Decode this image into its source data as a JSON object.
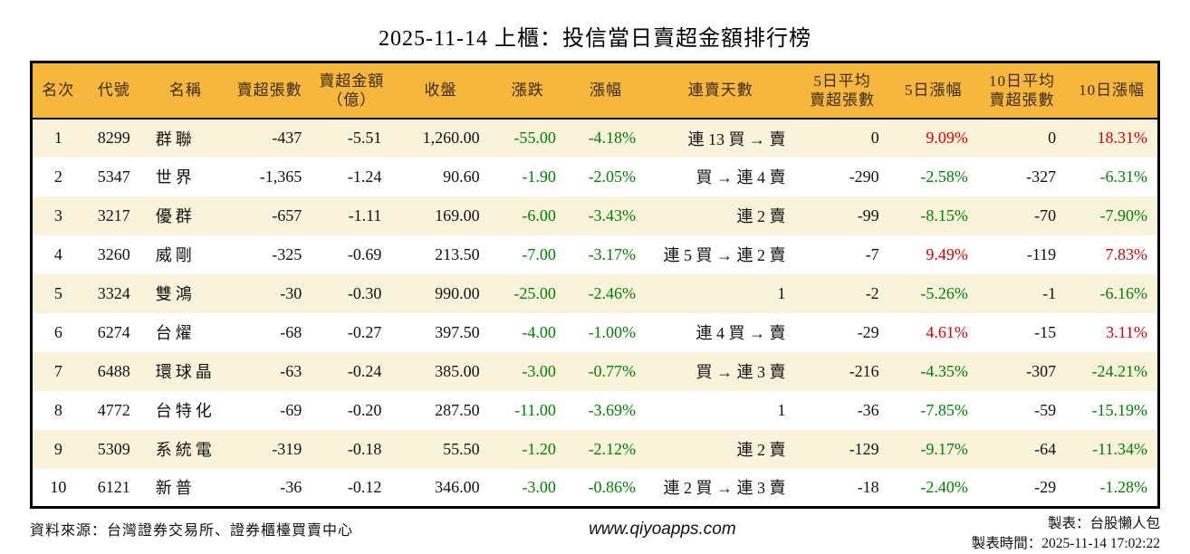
{
  "title": "2025-11-14 上櫃：投信當日賣超金額排行榜",
  "colors": {
    "header_bg": "#F6B73E",
    "row_alt": "#FAF3DC",
    "up": "#DE0000",
    "down": "#008000",
    "border": "#000000",
    "header_text": "#3A2A08"
  },
  "table": {
    "columns": [
      "名次",
      "代號",
      "名稱",
      "賣超張數",
      "賣超金額\n（億）",
      "收盤",
      "漲跌",
      "漲幅",
      "連賣天數",
      "5日平均\n賣超張數",
      "5日漲幅",
      "10日平均\n賣超張數",
      "10日漲幅"
    ],
    "rows": [
      {
        "rank": "1",
        "code": "8299",
        "name": "群聯",
        "net_sell_shares": "-437",
        "net_sell_amount": "-5.51",
        "close": "1,260.00",
        "change": "-55.00",
        "change_pct": "-4.18%",
        "streak": "連 13 買 → 賣",
        "avg5": "0",
        "pct5": "9.09%",
        "avg10": "0",
        "pct10": "18.31%"
      },
      {
        "rank": "2",
        "code": "5347",
        "name": "世界",
        "net_sell_shares": "-1,365",
        "net_sell_amount": "-1.24",
        "close": "90.60",
        "change": "-1.90",
        "change_pct": "-2.05%",
        "streak": "買 → 連 4 賣",
        "avg5": "-290",
        "pct5": "-2.58%",
        "avg10": "-327",
        "pct10": "-6.31%"
      },
      {
        "rank": "3",
        "code": "3217",
        "name": "優群",
        "net_sell_shares": "-657",
        "net_sell_amount": "-1.11",
        "close": "169.00",
        "change": "-6.00",
        "change_pct": "-3.43%",
        "streak": "連 2 賣",
        "avg5": "-99",
        "pct5": "-8.15%",
        "avg10": "-70",
        "pct10": "-7.90%"
      },
      {
        "rank": "4",
        "code": "3260",
        "name": "威剛",
        "net_sell_shares": "-325",
        "net_sell_amount": "-0.69",
        "close": "213.50",
        "change": "-7.00",
        "change_pct": "-3.17%",
        "streak": "連 5 買 → 連 2 賣",
        "avg5": "-7",
        "pct5": "9.49%",
        "avg10": "-119",
        "pct10": "7.83%"
      },
      {
        "rank": "5",
        "code": "3324",
        "name": "雙鴻",
        "net_sell_shares": "-30",
        "net_sell_amount": "-0.30",
        "close": "990.00",
        "change": "-25.00",
        "change_pct": "-2.46%",
        "streak": "1",
        "avg5": "-2",
        "pct5": "-5.26%",
        "avg10": "-1",
        "pct10": "-6.16%"
      },
      {
        "rank": "6",
        "code": "6274",
        "name": "台燿",
        "net_sell_shares": "-68",
        "net_sell_amount": "-0.27",
        "close": "397.50",
        "change": "-4.00",
        "change_pct": "-1.00%",
        "streak": "連 4 買 → 賣",
        "avg5": "-29",
        "pct5": "4.61%",
        "avg10": "-15",
        "pct10": "3.11%"
      },
      {
        "rank": "7",
        "code": "6488",
        "name": "環球晶",
        "net_sell_shares": "-63",
        "net_sell_amount": "-0.24",
        "close": "385.00",
        "change": "-3.00",
        "change_pct": "-0.77%",
        "streak": "買 → 連 3 賣",
        "avg5": "-216",
        "pct5": "-4.35%",
        "avg10": "-307",
        "pct10": "-24.21%"
      },
      {
        "rank": "8",
        "code": "4772",
        "name": "台特化",
        "net_sell_shares": "-69",
        "net_sell_amount": "-0.20",
        "close": "287.50",
        "change": "-11.00",
        "change_pct": "-3.69%",
        "streak": "1",
        "avg5": "-36",
        "pct5": "-7.85%",
        "avg10": "-59",
        "pct10": "-15.19%"
      },
      {
        "rank": "9",
        "code": "5309",
        "name": "系統電",
        "net_sell_shares": "-319",
        "net_sell_amount": "-0.18",
        "close": "55.50",
        "change": "-1.20",
        "change_pct": "-2.12%",
        "streak": "連 2 賣",
        "avg5": "-129",
        "pct5": "-9.17%",
        "avg10": "-64",
        "pct10": "-11.34%"
      },
      {
        "rank": "10",
        "code": "6121",
        "name": "新普",
        "net_sell_shares": "-36",
        "net_sell_amount": "-0.12",
        "close": "346.00",
        "change": "-3.00",
        "change_pct": "-0.86%",
        "streak": "連 2 買 → 連 3 賣",
        "avg5": "-18",
        "pct5": "-2.40%",
        "avg10": "-29",
        "pct10": "-1.28%"
      }
    ]
  },
  "footer": {
    "source": "資料來源：台灣證券交易所、證券櫃檯買賣中心",
    "website": "www.qiyoapps.com",
    "maker": "製表：台股懶人包",
    "time": "製表時間：2025-11-14 17:02:22"
  }
}
